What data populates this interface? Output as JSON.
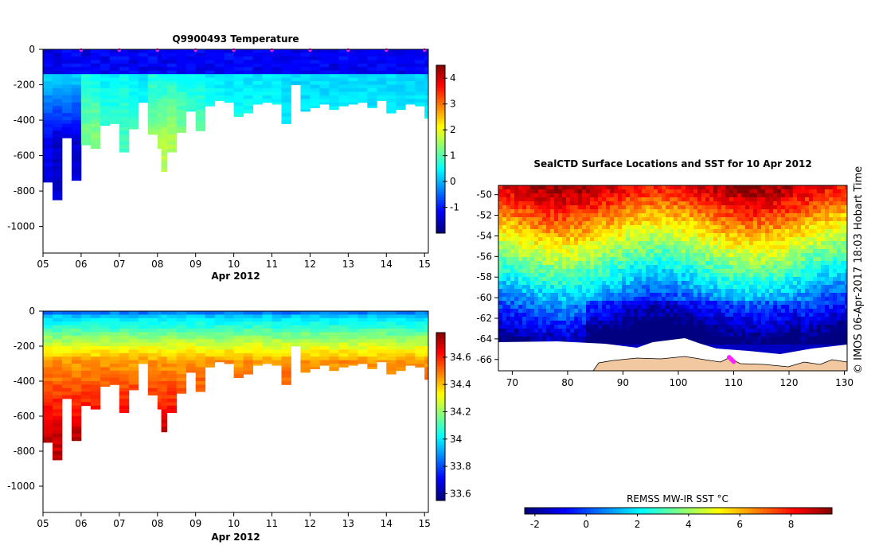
{
  "chart_data": [
    {
      "type": "heatmap",
      "id": "temperature-section",
      "title": "Q9900493  Temperature",
      "xlabel": "Apr 2012",
      "ylabel": "",
      "x_ticks": [
        "05",
        "06",
        "07",
        "08",
        "09",
        "10",
        "11",
        "12",
        "13",
        "14",
        "15"
      ],
      "x_range": [
        5,
        15.1
      ],
      "y_ticks": [
        0,
        -200,
        -400,
        -600,
        -800,
        -1000
      ],
      "y_range": [
        -1150,
        0
      ],
      "colorbar": {
        "min": -2,
        "max": 4.5,
        "ticks": [
          -1,
          0,
          1,
          2,
          3,
          4
        ]
      },
      "surface_markers": [
        6,
        7,
        8,
        9,
        10,
        11,
        12,
        13,
        14,
        15
      ],
      "profiles": [
        {
          "day": 5.0,
          "max_depth": 750,
          "surf": 0.2,
          "deep": -1.3
        },
        {
          "day": 5.25,
          "max_depth": 850,
          "surf": 0.1,
          "deep": -1.5
        },
        {
          "day": 5.5,
          "max_depth": 500,
          "surf": 0.2,
          "deep": -1.4
        },
        {
          "day": 5.75,
          "max_depth": 740,
          "surf": 0.1,
          "deep": -1.5
        },
        {
          "day": 6.0,
          "max_depth": 540,
          "surf": 0.6,
          "deep": 1.2
        },
        {
          "day": 6.25,
          "max_depth": 560,
          "surf": 0.5,
          "deep": 1.3
        },
        {
          "day": 6.5,
          "max_depth": 430,
          "surf": 0.4,
          "deep": 0.9
        },
        {
          "day": 6.75,
          "max_depth": 420,
          "surf": 0.4,
          "deep": 0.8
        },
        {
          "day": 7.0,
          "max_depth": 580,
          "surf": 0.5,
          "deep": 0.9
        },
        {
          "day": 7.25,
          "max_depth": 450,
          "surf": 0.4,
          "deep": 0.9
        },
        {
          "day": 7.5,
          "max_depth": 300,
          "surf": 0.3,
          "deep": 0.6
        },
        {
          "day": 7.75,
          "max_depth": 480,
          "surf": 0.6,
          "deep": 1.4
        },
        {
          "day": 8.0,
          "max_depth": 560,
          "surf": 0.5,
          "deep": 1.5
        },
        {
          "day": 8.1,
          "max_depth": 690,
          "surf": 0.5,
          "deep": 1.6
        },
        {
          "day": 8.25,
          "max_depth": 580,
          "surf": 0.6,
          "deep": 1.6
        },
        {
          "day": 8.5,
          "max_depth": 470,
          "surf": 0.5,
          "deep": 1.4
        },
        {
          "day": 8.75,
          "max_depth": 350,
          "surf": 0.4,
          "deep": 1.1
        },
        {
          "day": 9.0,
          "max_depth": 460,
          "surf": 0.4,
          "deep": 1.2
        },
        {
          "day": 9.25,
          "max_depth": 320,
          "surf": 0.3,
          "deep": 0.9
        },
        {
          "day": 9.5,
          "max_depth": 290,
          "surf": 0.3,
          "deep": 0.8
        },
        {
          "day": 9.75,
          "max_depth": 300,
          "surf": 0.3,
          "deep": 0.7
        },
        {
          "day": 10.0,
          "max_depth": 380,
          "surf": 0.3,
          "deep": 0.7
        },
        {
          "day": 10.25,
          "max_depth": 360,
          "surf": 0.3,
          "deep": 0.6
        },
        {
          "day": 10.5,
          "max_depth": 310,
          "surf": 0.3,
          "deep": 0.6
        },
        {
          "day": 10.75,
          "max_depth": 300,
          "surf": 0.3,
          "deep": 0.6
        },
        {
          "day": 11.0,
          "max_depth": 310,
          "surf": 0.3,
          "deep": 0.6
        },
        {
          "day": 11.25,
          "max_depth": 420,
          "surf": 0.2,
          "deep": 0.4
        },
        {
          "day": 11.5,
          "max_depth": 200,
          "surf": 0.2,
          "deep": 0.2
        },
        {
          "day": 11.75,
          "max_depth": 350,
          "surf": 0.2,
          "deep": 0.4
        },
        {
          "day": 12.0,
          "max_depth": 330,
          "surf": 0.2,
          "deep": 0.4
        },
        {
          "day": 12.25,
          "max_depth": 310,
          "surf": 0.2,
          "deep": 0.4
        },
        {
          "day": 12.5,
          "max_depth": 340,
          "surf": 0.2,
          "deep": 0.4
        },
        {
          "day": 12.75,
          "max_depth": 320,
          "surf": 0.2,
          "deep": 0.4
        },
        {
          "day": 13.0,
          "max_depth": 310,
          "surf": 0.2,
          "deep": 0.4
        },
        {
          "day": 13.25,
          "max_depth": 300,
          "surf": 0.2,
          "deep": 0.4
        },
        {
          "day": 13.5,
          "max_depth": 330,
          "surf": 0.2,
          "deep": 0.4
        },
        {
          "day": 13.75,
          "max_depth": 290,
          "surf": 0.2,
          "deep": 0.4
        },
        {
          "day": 14.0,
          "max_depth": 360,
          "surf": 0.2,
          "deep": 0.4
        },
        {
          "day": 14.25,
          "max_depth": 340,
          "surf": 0.2,
          "deep": 0.4
        },
        {
          "day": 14.5,
          "max_depth": 310,
          "surf": 0.2,
          "deep": 0.4
        },
        {
          "day": 14.75,
          "max_depth": 320,
          "surf": 0.2,
          "deep": 0.4
        },
        {
          "day": 15.0,
          "max_depth": 390,
          "surf": 0.2,
          "deep": 0.4
        }
      ]
    },
    {
      "type": "heatmap",
      "id": "salinity-section",
      "title": "",
      "xlabel": "Apr 2012",
      "ylabel": "",
      "x_ticks": [
        "05",
        "06",
        "07",
        "08",
        "09",
        "10",
        "11",
        "12",
        "13",
        "14",
        "15"
      ],
      "x_range": [
        5,
        15.1
      ],
      "y_ticks": [
        0,
        -200,
        -400,
        -600,
        -800,
        -1000
      ],
      "y_range": [
        -1150,
        0
      ],
      "colorbar": {
        "min": 33.55,
        "max": 34.78,
        "ticks": [
          33.6,
          33.8,
          34,
          34.2,
          34.4,
          34.6
        ]
      },
      "surface_value": 33.85,
      "deep_value": 34.62
    },
    {
      "type": "heatmap",
      "id": "sst-map",
      "title": "SealCTD Surface Locations and SST for 10 Apr 2012",
      "xlabel": "",
      "ylabel": "",
      "x_ticks": [
        70,
        80,
        90,
        100,
        110,
        120,
        130
      ],
      "x_range": [
        67.5,
        130.5
      ],
      "y_ticks": [
        -50,
        -52,
        -54,
        -56,
        -58,
        -60,
        -62,
        -64,
        -66
      ],
      "y_range": [
        -67.1,
        -49.1
      ],
      "colorbar": {
        "label": "REMSS MW-IR SST °C",
        "min": -2.4,
        "max": 9.6,
        "ticks": [
          -2,
          0,
          2,
          4,
          6,
          8
        ]
      },
      "seal_track": [
        [
          109.2,
          -65.8
        ],
        [
          109.6,
          -66.0
        ],
        [
          110.0,
          -66.2
        ]
      ]
    }
  ],
  "copyright_text": "©  IMOS 06-Apr-2017 18:03 Hobart Time"
}
